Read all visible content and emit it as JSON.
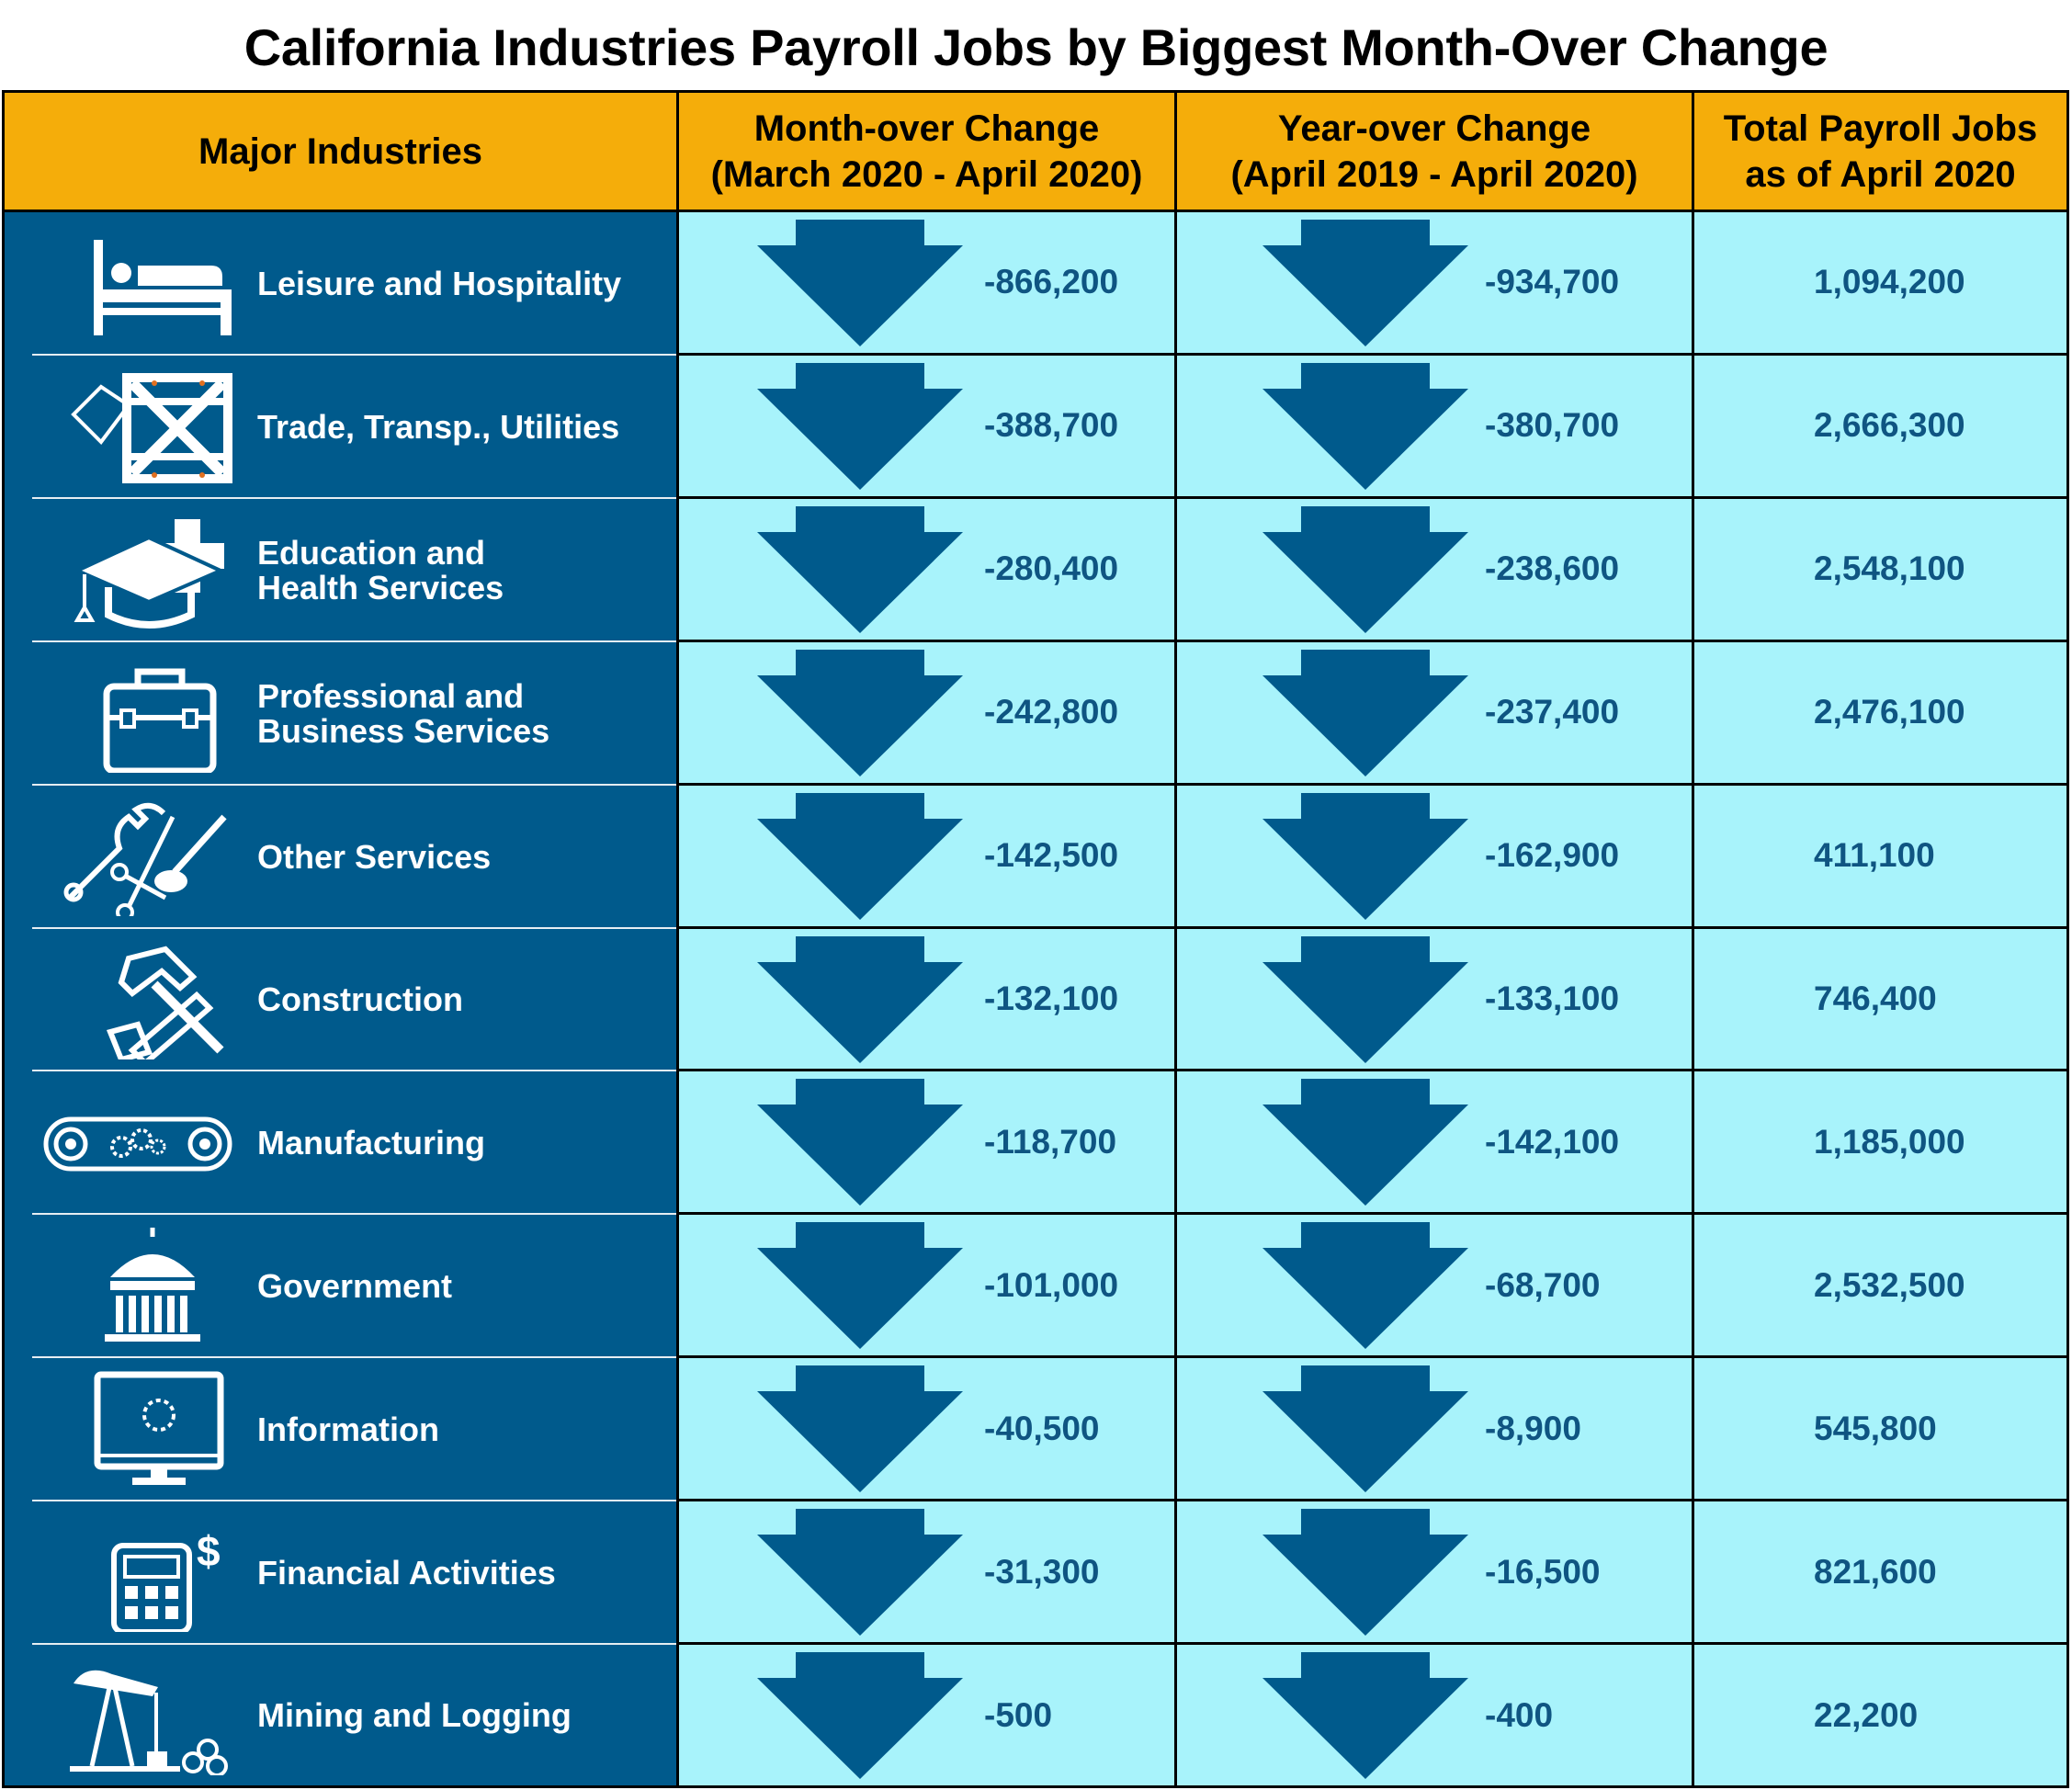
{
  "title": "California Industries Payroll Jobs by Biggest Month-Over Change",
  "colors": {
    "header": "#f5ad0a",
    "industry_bg": "#005a8c",
    "value_bg": "#a8f3fb",
    "value_text": "#0f5582",
    "arrow": "#005a8c"
  },
  "chart_data": {
    "type": "table",
    "title": "California Industries Payroll Jobs by Biggest Month-Over Change",
    "columns": [
      "Major Industries",
      "Month-over Change\n(March 2020 - April 2020)",
      "Year-over Change\n(April 2019 - April 2020)",
      "Total Payroll Jobs\nas of April 2020"
    ],
    "rows": [
      {
        "industry": "Leisure and Hospitality",
        "icon": "bed-icon",
        "mom": "-866,200",
        "yoy": "-934,700",
        "total": "1,094,200"
      },
      {
        "industry": "Trade, Transp., Utilities",
        "icon": "crate-tag-icon",
        "mom": "-388,700",
        "yoy": "-380,700",
        "total": "2,666,300"
      },
      {
        "industry": "Education and\nHealth Services",
        "icon": "graduation-cap-cross-icon",
        "mom": "-280,400",
        "yoy": "-238,600",
        "total": "2,548,100"
      },
      {
        "industry": "Professional and\nBusiness Services",
        "icon": "briefcase-icon",
        "mom": "-242,800",
        "yoy": "-237,400",
        "total": "2,476,100"
      },
      {
        "industry": "Other Services",
        "icon": "wrench-scissors-brush-icon",
        "mom": "-142,500",
        "yoy": "-162,900",
        "total": "411,100"
      },
      {
        "industry": "Construction",
        "icon": "hammer-saw-icon",
        "mom": "-132,100",
        "yoy": "-133,100",
        "total": "746,400"
      },
      {
        "industry": "Manufacturing",
        "icon": "conveyor-gears-icon",
        "mom": "-118,700",
        "yoy": "-142,100",
        "total": "1,185,000"
      },
      {
        "industry": "Government",
        "icon": "capitol-building-icon",
        "mom": "-101,000",
        "yoy": "-68,700",
        "total": "2,532,500"
      },
      {
        "industry": "Information",
        "icon": "monitor-loading-icon",
        "mom": "-40,500",
        "yoy": "-8,900",
        "total": "545,800"
      },
      {
        "industry": "Financial Activities",
        "icon": "calculator-dollar-icon",
        "mom": "-31,300",
        "yoy": "-16,500",
        "total": "821,600"
      },
      {
        "industry": "Mining and Logging",
        "icon": "oil-pump-logs-icon",
        "mom": "-500",
        "yoy": "-400",
        "total": "22,200"
      }
    ]
  }
}
